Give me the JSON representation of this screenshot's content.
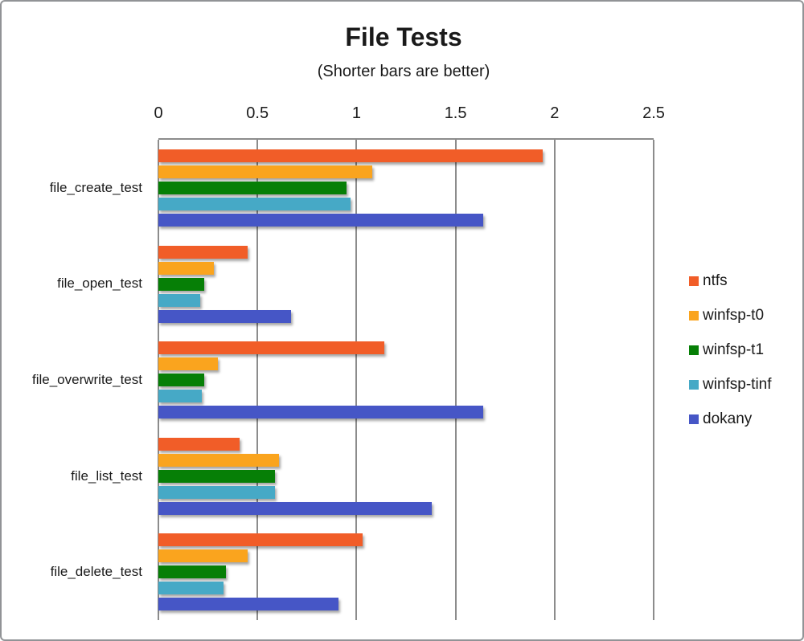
{
  "title": "File Tests",
  "subtitle": "(Shorter bars are better)",
  "chart_data": {
    "type": "bar",
    "orientation": "horizontal",
    "title": "File Tests",
    "subtitle": "(Shorter bars are better)",
    "categories": [
      "file_create_test",
      "file_open_test",
      "file_overwrite_test",
      "file_list_test",
      "file_delete_test"
    ],
    "series": [
      {
        "name": "ntfs",
        "color": "#f15d28",
        "values": [
          1.94,
          0.45,
          1.14,
          0.41,
          1.03
        ]
      },
      {
        "name": "winfsp-t0",
        "color": "#faa41e",
        "values": [
          1.08,
          0.28,
          0.3,
          0.61,
          0.45
        ]
      },
      {
        "name": "winfsp-t1",
        "color": "#067f06",
        "values": [
          0.95,
          0.23,
          0.23,
          0.59,
          0.34
        ]
      },
      {
        "name": "winfsp-tinf",
        "color": "#46a9c6",
        "values": [
          0.97,
          0.21,
          0.22,
          0.59,
          0.33
        ]
      },
      {
        "name": "dokany",
        "color": "#4656c6",
        "values": [
          1.64,
          0.67,
          1.64,
          1.38,
          0.91
        ]
      }
    ],
    "xlim": [
      0,
      2.5
    ],
    "xticks": [
      0,
      0.5,
      1,
      1.5,
      2,
      2.5
    ],
    "xtick_labels": [
      "0",
      "0.5",
      "1",
      "1.5",
      "2",
      "2.5"
    ],
    "grid": "vertical",
    "gridline_color": "#8c8c8c",
    "legend_position": "right",
    "xlabel": "",
    "ylabel": ""
  }
}
